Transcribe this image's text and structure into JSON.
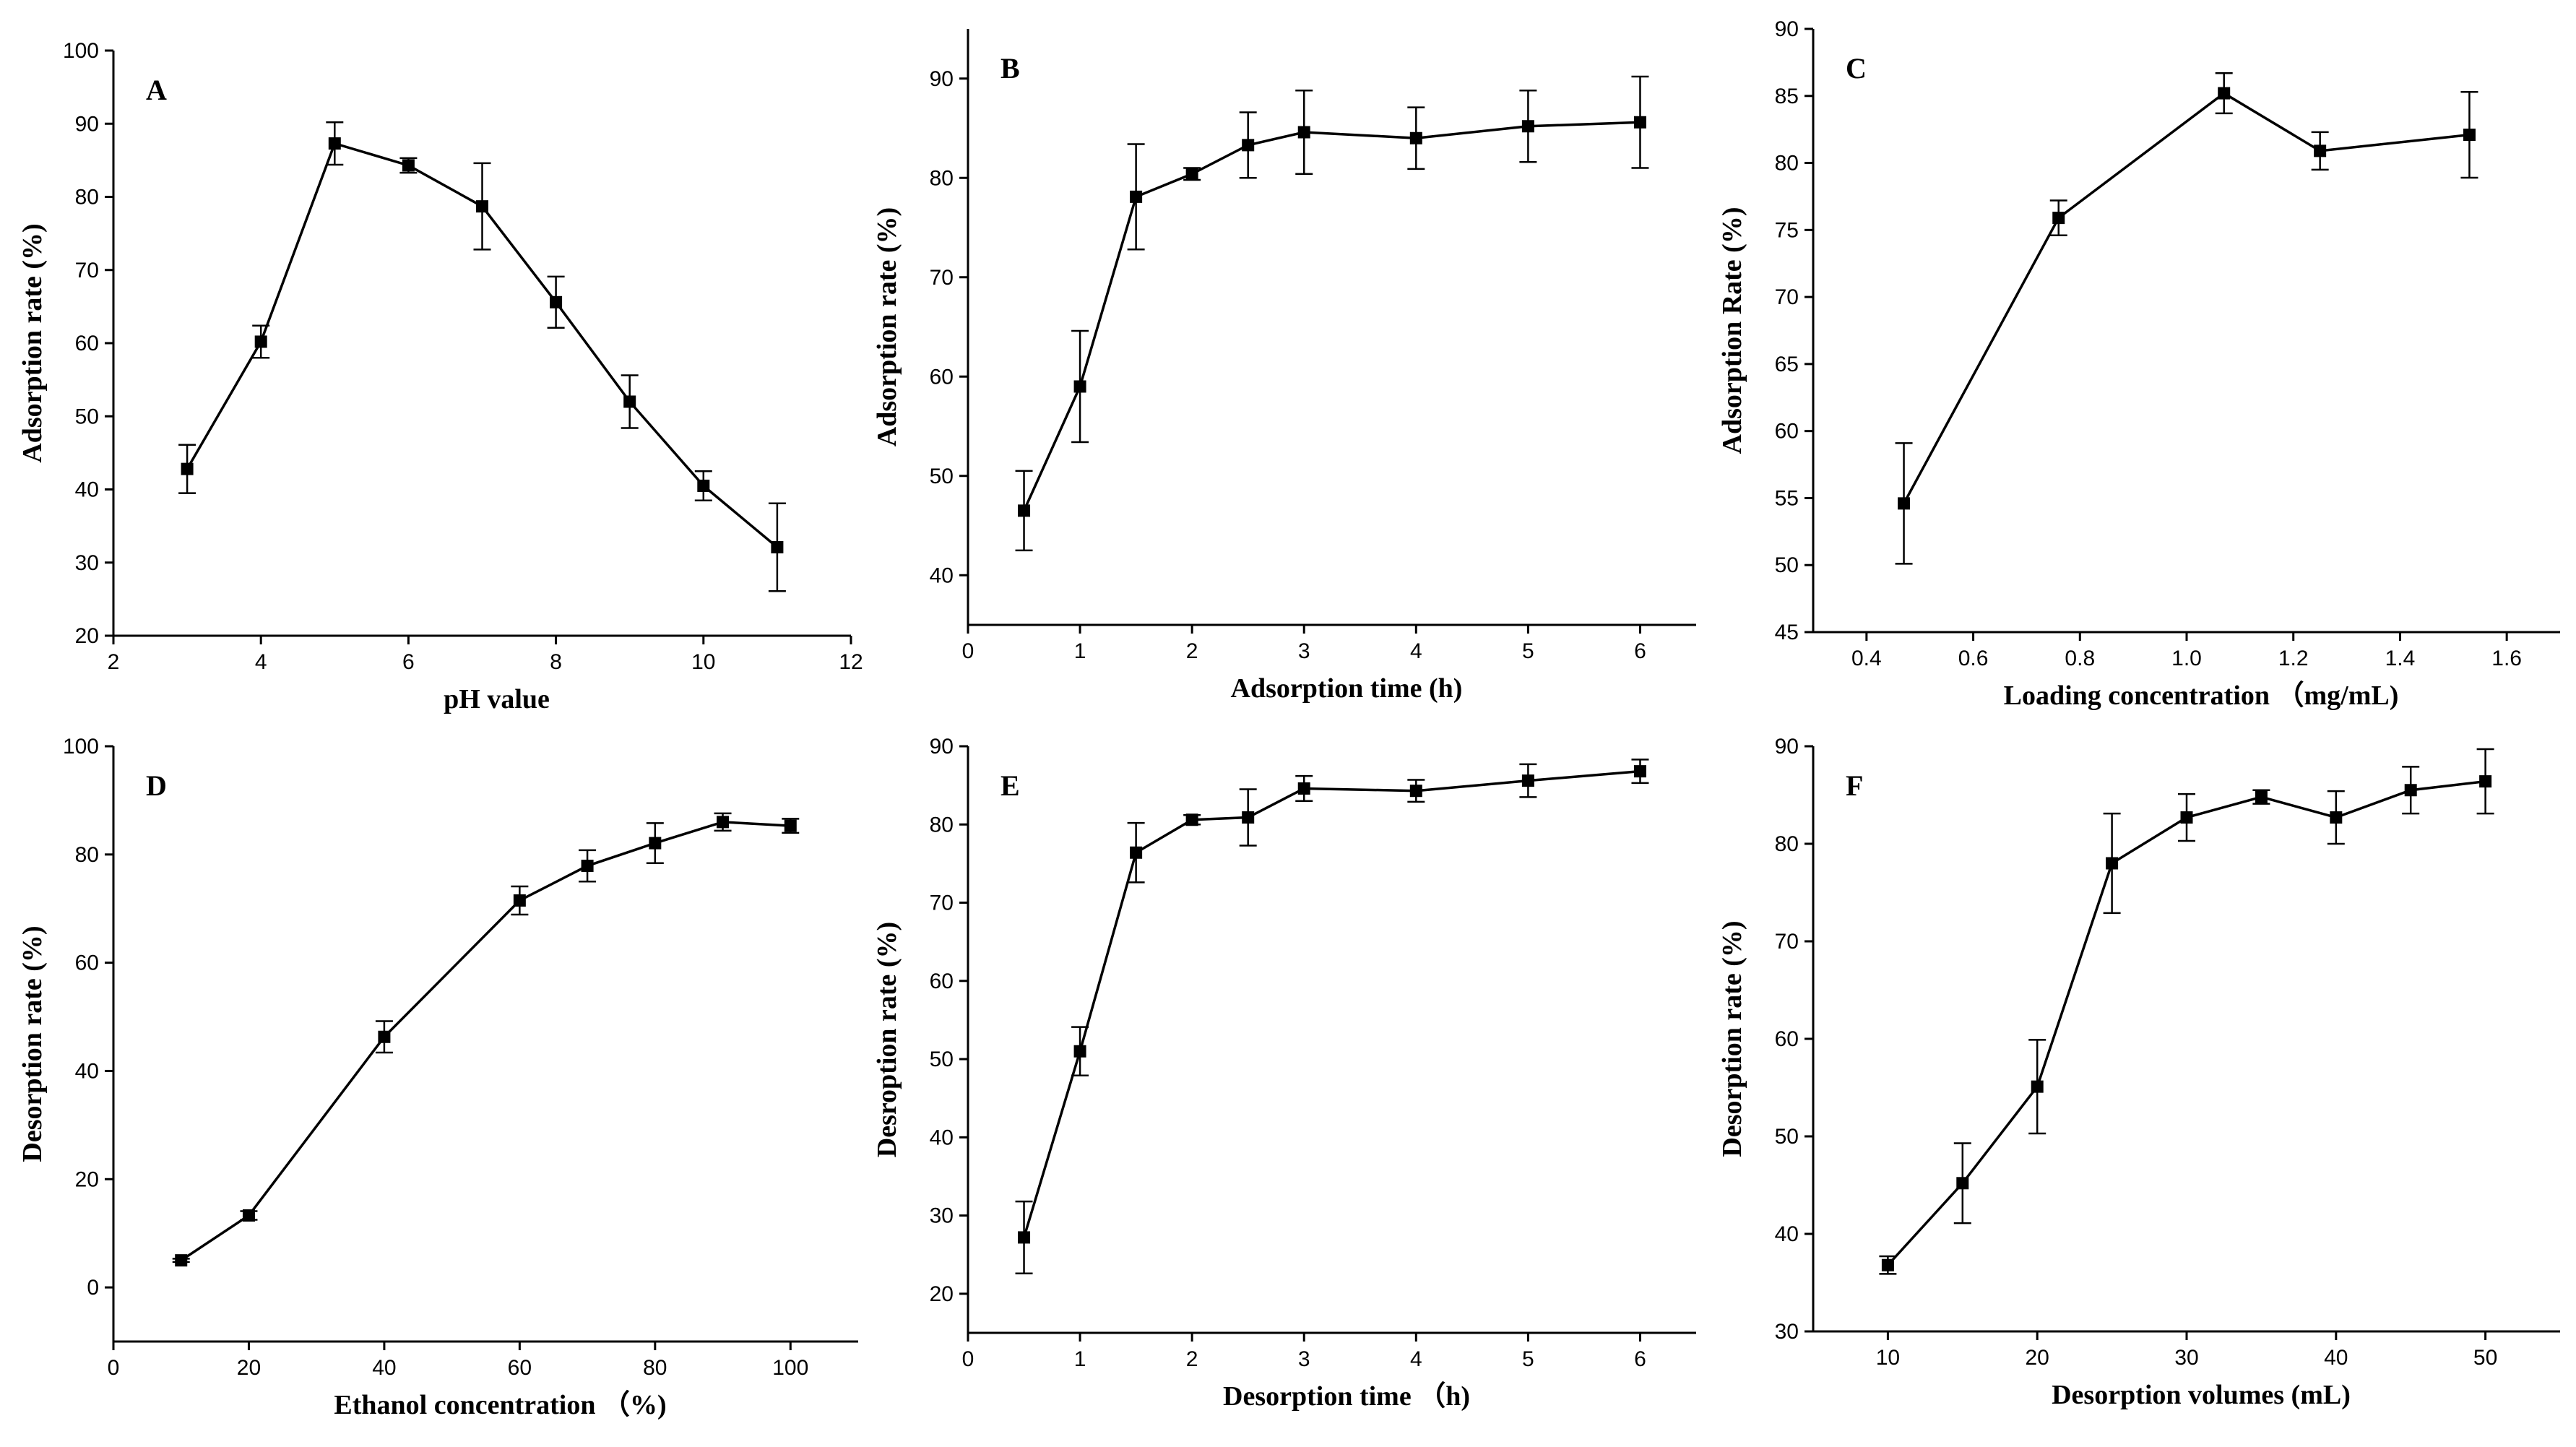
{
  "chart_data": [
    {
      "id": "A",
      "type": "line",
      "panel_label": "A",
      "xlabel": "pH value",
      "ylabel": "Adsorption rate (%)",
      "xlim": [
        2,
        12
      ],
      "ylim": [
        20,
        100
      ],
      "xticks": [
        2,
        4,
        6,
        8,
        10,
        12
      ],
      "yticks": [
        20,
        30,
        40,
        50,
        60,
        70,
        80,
        90,
        100
      ],
      "xtick_labels": [
        "2",
        "4",
        "6",
        "8",
        "10",
        "12"
      ],
      "ytick_labels": [
        "20",
        "30",
        "40",
        "50",
        "60",
        "70",
        "80",
        "90",
        "100"
      ],
      "x": [
        3,
        4,
        5,
        6,
        7,
        8,
        9,
        10,
        11
      ],
      "y": [
        42.8,
        60.2,
        87.3,
        84.3,
        78.7,
        65.6,
        52.0,
        40.5,
        32.1
      ],
      "err": [
        3.3,
        2.2,
        2.9,
        1.0,
        5.9,
        3.5,
        3.6,
        2.0,
        6.0
      ]
    },
    {
      "id": "B",
      "type": "line",
      "panel_label": "B",
      "xlabel": "Adsorption time (h)",
      "ylabel": "Adsorption rate (%)",
      "xlim": [
        0,
        6.5
      ],
      "ylim": [
        35,
        95
      ],
      "xticks": [
        0,
        1,
        2,
        3,
        4,
        5,
        6
      ],
      "yticks": [
        40,
        50,
        60,
        70,
        80,
        90
      ],
      "xtick_labels": [
        "0",
        "1",
        "2",
        "3",
        "4",
        "5",
        "6"
      ],
      "ytick_labels": [
        "40",
        "50",
        "60",
        "70",
        "80",
        "90"
      ],
      "x": [
        0.5,
        1,
        1.5,
        2,
        2.5,
        3,
        4,
        5,
        6
      ],
      "y": [
        46.5,
        59.0,
        78.1,
        80.4,
        83.3,
        84.6,
        84.0,
        85.2,
        85.6
      ],
      "err": [
        4.0,
        5.6,
        5.3,
        0.6,
        3.3,
        4.2,
        3.1,
        3.6,
        4.6
      ]
    },
    {
      "id": "C",
      "type": "line",
      "panel_label": "C",
      "xlabel": "Loading concentration （mg/mL)",
      "ylabel": "Adsorption Rate (%)",
      "xlim": [
        0.3,
        1.7
      ],
      "ylim": [
        45,
        90
      ],
      "xticks": [
        0.4,
        0.6,
        0.8,
        1.0,
        1.2,
        1.4,
        1.6
      ],
      "yticks": [
        45,
        50,
        55,
        60,
        65,
        70,
        75,
        80,
        85,
        90
      ],
      "xtick_labels": [
        "0.4",
        "0.6",
        "0.8",
        "1.0",
        "1.2",
        "1.4",
        "1.6"
      ],
      "ytick_labels": [
        "45",
        "50",
        "55",
        "60",
        "65",
        "70",
        "75",
        "80",
        "85",
        "90"
      ],
      "x": [
        0.47,
        0.76,
        1.07,
        1.25,
        1.53
      ],
      "y": [
        54.6,
        75.9,
        85.2,
        80.9,
        82.1
      ],
      "err": [
        4.5,
        1.3,
        1.5,
        1.4,
        3.2
      ]
    },
    {
      "id": "D",
      "type": "line",
      "panel_label": "D",
      "xlabel": "Ethanol concentration （%)",
      "ylabel": "Desorption rate (%)",
      "xlim": [
        0,
        110
      ],
      "ylim": [
        -10,
        100
      ],
      "xticks": [
        0,
        20,
        40,
        60,
        80,
        100
      ],
      "yticks": [
        0,
        20,
        40,
        60,
        80,
        100
      ],
      "xtick_labels": [
        "0",
        "20",
        "40",
        "60",
        "80",
        "100"
      ],
      "ytick_labels": [
        "0",
        "20",
        "40",
        "60",
        "80",
        "100"
      ],
      "x": [
        10,
        20,
        40,
        60,
        70,
        80,
        90,
        100
      ],
      "y": [
        5.0,
        13.3,
        46.3,
        71.5,
        77.9,
        82.1,
        86.0,
        85.3
      ],
      "err": [
        0.3,
        0.8,
        2.9,
        2.6,
        2.9,
        3.7,
        1.6,
        1.3
      ]
    },
    {
      "id": "E",
      "type": "line",
      "panel_label": "E",
      "xlabel": "Desorption time （h)",
      "ylabel": "Desroption rate (%)",
      "xlim": [
        0,
        6.5
      ],
      "ylim": [
        15,
        90
      ],
      "xticks": [
        0,
        1,
        2,
        3,
        4,
        5,
        6
      ],
      "yticks": [
        20,
        30,
        40,
        50,
        60,
        70,
        80,
        90
      ],
      "xtick_labels": [
        "0",
        "1",
        "2",
        "3",
        "4",
        "5",
        "6"
      ],
      "ytick_labels": [
        "20",
        "30",
        "40",
        "50",
        "60",
        "70",
        "80",
        "90"
      ],
      "x": [
        0.5,
        1,
        1.5,
        2,
        2.5,
        3,
        4,
        5,
        6
      ],
      "y": [
        27.2,
        51.0,
        76.4,
        80.6,
        80.9,
        84.6,
        84.3,
        85.6,
        86.8
      ],
      "err": [
        4.6,
        3.1,
        3.8,
        0.6,
        3.6,
        1.6,
        1.4,
        2.1,
        1.5
      ]
    },
    {
      "id": "F",
      "type": "line",
      "panel_label": "F",
      "xlabel": "Desorption volumes (mL)",
      "ylabel": "Desorption rate (%)",
      "xlim": [
        5,
        55
      ],
      "ylim": [
        30,
        90
      ],
      "xticks": [
        10,
        20,
        30,
        40,
        50
      ],
      "yticks": [
        30,
        40,
        50,
        60,
        70,
        80,
        90
      ],
      "xtick_labels": [
        "10",
        "20",
        "30",
        "40",
        "50"
      ],
      "ytick_labels": [
        "30",
        "40",
        "50",
        "60",
        "70",
        "80",
        "90"
      ],
      "x": [
        10,
        15,
        20,
        25,
        30,
        35,
        40,
        45,
        50
      ],
      "y": [
        36.8,
        45.2,
        55.1,
        78.0,
        82.7,
        84.8,
        82.7,
        85.5,
        86.4
      ],
      "err": [
        0.9,
        4.1,
        4.8,
        5.1,
        2.4,
        0.7,
        2.7,
        2.4,
        3.3
      ]
    }
  ]
}
